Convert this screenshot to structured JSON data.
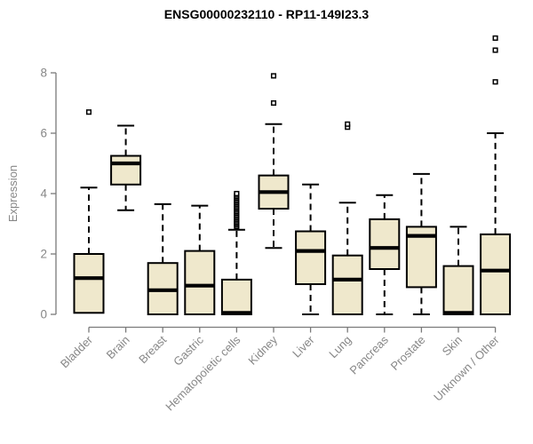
{
  "chart_data": {
    "type": "boxplot",
    "title": "ENSG00000232110 - RP11-149I23.3",
    "ylabel": "Expression",
    "xlabel": "",
    "ylim": [
      0,
      9.5
    ],
    "yticks": [
      0,
      2,
      4,
      6,
      8
    ],
    "grid": false,
    "legend": "none",
    "box_fill": "#EFE8CC",
    "box_border": "#000000",
    "median_color": "#000000",
    "axis_color": "#7a7a7a",
    "label_color": "#878787",
    "categories": [
      "Bladder",
      "Brain",
      "Breast",
      "Gastric",
      "Hematopoietic cells",
      "Kidney",
      "Liver",
      "Lung",
      "Pancreas",
      "Prostate",
      "Skin",
      "Unknown / Other"
    ],
    "series": [
      {
        "category": "Bladder",
        "whisker_low": 0.05,
        "q1": 0.05,
        "median": 1.2,
        "q3": 2.0,
        "whisker_high": 4.2,
        "outliers": [
          6.7
        ]
      },
      {
        "category": "Brain",
        "whisker_low": 3.45,
        "q1": 4.3,
        "median": 5.0,
        "q3": 5.25,
        "whisker_high": 6.25,
        "outliers": []
      },
      {
        "category": "Breast",
        "whisker_low": 0.0,
        "q1": 0.0,
        "median": 0.8,
        "q3": 1.7,
        "whisker_high": 3.65,
        "outliers": []
      },
      {
        "category": "Gastric",
        "whisker_low": 0.0,
        "q1": 0.0,
        "median": 0.95,
        "q3": 2.1,
        "whisker_high": 3.6,
        "outliers": []
      },
      {
        "category": "Hematopoietic cells",
        "whisker_low": 0.0,
        "q1": 0.0,
        "median": 0.05,
        "q3": 1.15,
        "whisker_high": 2.8,
        "outliers": [
          2.9,
          2.95,
          3.0,
          3.05,
          3.1,
          3.15,
          3.2,
          3.25,
          3.3,
          3.35,
          3.4,
          3.45,
          3.5,
          3.55,
          3.6,
          3.65,
          3.7,
          3.75,
          3.8,
          3.85,
          3.9,
          3.95,
          4.0
        ]
      },
      {
        "category": "Kidney",
        "whisker_low": 2.2,
        "q1": 3.5,
        "median": 4.05,
        "q3": 4.6,
        "whisker_high": 6.3,
        "outliers": [
          7.0,
          7.9
        ]
      },
      {
        "category": "Liver",
        "whisker_low": 0.0,
        "q1": 1.0,
        "median": 2.1,
        "q3": 2.75,
        "whisker_high": 4.3,
        "outliers": []
      },
      {
        "category": "Lung",
        "whisker_low": 0.0,
        "q1": 0.0,
        "median": 1.15,
        "q3": 1.95,
        "whisker_high": 3.7,
        "outliers": [
          6.2,
          6.3
        ]
      },
      {
        "category": "Pancreas",
        "whisker_low": 0.0,
        "q1": 1.5,
        "median": 2.2,
        "q3": 3.15,
        "whisker_high": 3.95,
        "outliers": []
      },
      {
        "category": "Prostate",
        "whisker_low": 0.0,
        "q1": 0.9,
        "median": 2.6,
        "q3": 2.9,
        "whisker_high": 4.65,
        "outliers": []
      },
      {
        "category": "Skin",
        "whisker_low": 0.0,
        "q1": 0.0,
        "median": 0.05,
        "q3": 1.6,
        "whisker_high": 2.9,
        "outliers": []
      },
      {
        "category": "Unknown / Other",
        "whisker_low": 0.0,
        "q1": 0.0,
        "median": 1.45,
        "q3": 2.65,
        "whisker_high": 6.0,
        "outliers": [
          7.7,
          8.75,
          9.15
        ]
      }
    ]
  }
}
